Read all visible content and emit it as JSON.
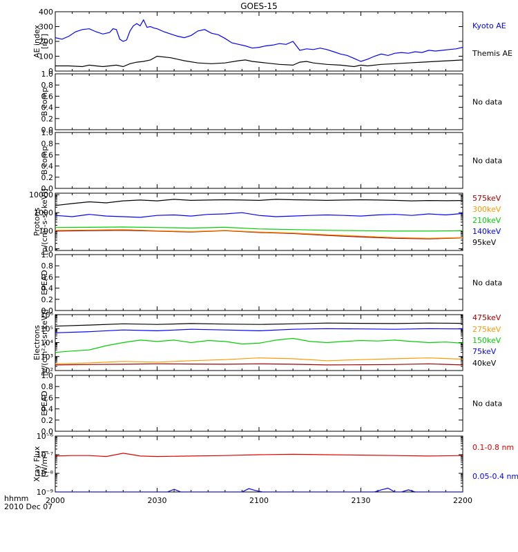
{
  "chart_data": {
    "title": "GOES-15",
    "type": "line",
    "x_label_line1": "hhmm",
    "x_label_line2": "2010 Dec 07",
    "x_ticks": [
      "2000",
      "2030",
      "2100",
      "2130",
      "2200"
    ],
    "x_range_minutes": [
      0,
      120
    ],
    "panels": [
      {
        "id": "ae",
        "ylabel": [
          "AE index",
          "[nT]"
        ],
        "scale": "linear",
        "ylim": [
          0,
          400
        ],
        "ytick_labels": [
          "0",
          "100",
          "200",
          "300",
          "400"
        ],
        "ytick_values": [
          0,
          100,
          200,
          300,
          400
        ],
        "series": [
          {
            "name": "Kyoto AE",
            "color": "#0000ff",
            "x": [
              0,
              2,
              4,
              6,
              8,
              10,
              12,
              14,
              16,
              17,
              18,
              19,
              20,
              21,
              22,
              23,
              24,
              25,
              26,
              27,
              28,
              29,
              30,
              32,
              34,
              36,
              38,
              40,
              42,
              44,
              46,
              48,
              50,
              52,
              54,
              56,
              58,
              60,
              62,
              64,
              66,
              68,
              70,
              72,
              74,
              76,
              78,
              80,
              82,
              84,
              86,
              88,
              90,
              92,
              94,
              96,
              98,
              100,
              102,
              104,
              106,
              108,
              110,
              112,
              114,
              116,
              118,
              120
            ],
            "y": [
              225,
              215,
              235,
              265,
              280,
              285,
              265,
              250,
              260,
              285,
              280,
              215,
              200,
              210,
              270,
              305,
              320,
              305,
              345,
              295,
              300,
              290,
              285,
              265,
              250,
              235,
              225,
              240,
              270,
              280,
              255,
              245,
              220,
              190,
              180,
              170,
              155,
              160,
              170,
              175,
              185,
              180,
              200,
              140,
              150,
              145,
              155,
              145,
              130,
              115,
              105,
              85,
              65,
              80,
              100,
              115,
              105,
              120,
              125,
              120,
              130,
              125,
              140,
              135,
              140,
              145,
              150,
              160
            ]
          },
          {
            "name": "Themis AE",
            "color": "#000000",
            "x": [
              0,
              4,
              8,
              10,
              12,
              14,
              16,
              18,
              20,
              22,
              24,
              26,
              28,
              30,
              34,
              38,
              42,
              46,
              50,
              54,
              56,
              58,
              62,
              66,
              70,
              72,
              74,
              76,
              78,
              80,
              84,
              88,
              90,
              92,
              96,
              100,
              104,
              108,
              112,
              116,
              120
            ],
            "y": [
              35,
              35,
              30,
              40,
              35,
              30,
              35,
              40,
              30,
              50,
              60,
              65,
              75,
              100,
              90,
              70,
              55,
              50,
              55,
              70,
              75,
              65,
              55,
              45,
              40,
              60,
              65,
              55,
              50,
              45,
              40,
              30,
              40,
              35,
              45,
              50,
              55,
              60,
              65,
              70,
              75
            ]
          }
        ]
      },
      {
        "id": "b1",
        "ylabel": [
          "B comp"
        ],
        "scale": "linear",
        "ylim": [
          0,
          1
        ],
        "ytick_labels": [
          "0.0",
          "0.2",
          "0.4",
          "0.6",
          "0.8",
          "1.0"
        ],
        "ytick_values": [
          0,
          0.2,
          0.4,
          0.6,
          0.8,
          1.0
        ],
        "note": "No data",
        "series": []
      },
      {
        "id": "b2",
        "ylabel": [
          "B comp"
        ],
        "scale": "linear",
        "ylim": [
          0,
          1
        ],
        "ytick_labels": [
          "0.0",
          "0.2",
          "0.4",
          "0.6",
          "0.8",
          "1.0"
        ],
        "ytick_values": [
          0,
          0.2,
          0.4,
          0.6,
          0.8,
          1.0
        ],
        "note": "No data",
        "series": []
      },
      {
        "id": "protons",
        "ylabel": [
          "Protons",
          "[p/(cm²-s-sr-keV)]"
        ],
        "scale": "log",
        "ylim": [
          8,
          12000
        ],
        "ytick_labels": [
          "10",
          "100",
          "1000",
          "10000"
        ],
        "ytick_values": [
          10,
          100,
          1000,
          10000
        ],
        "series": [
          {
            "name": "575keV",
            "color": "#a00000",
            "x": [
              0,
              10,
              20,
              30,
              40,
              50,
              60,
              70,
              80,
              90,
              100,
              110,
              120
            ],
            "y": [
              95,
              100,
              105,
              95,
              85,
              100,
              80,
              70,
              55,
              45,
              38,
              35,
              40
            ]
          },
          {
            "name": "300keV",
            "color": "#ff9900",
            "x": [
              0,
              10,
              20,
              30,
              40,
              50,
              60,
              70,
              80,
              90,
              100,
              110,
              120
            ],
            "y": [
              105,
              110,
              115,
              100,
              90,
              105,
              85,
              75,
              60,
              50,
              42,
              38,
              42
            ]
          },
          {
            "name": "210keV",
            "color": "#00d000",
            "x": [
              0,
              10,
              20,
              30,
              40,
              50,
              60,
              70,
              80,
              90,
              100,
              110,
              120
            ],
            "y": [
              150,
              155,
              160,
              150,
              140,
              155,
              125,
              115,
              105,
              100,
              95,
              95,
              100
            ]
          },
          {
            "name": "140keV",
            "color": "#0000ff",
            "x": [
              0,
              5,
              10,
              15,
              20,
              25,
              30,
              35,
              40,
              45,
              50,
              55,
              60,
              65,
              70,
              75,
              80,
              85,
              90,
              95,
              100,
              105,
              110,
              115,
              120
            ],
            "y": [
              700,
              600,
              800,
              650,
              600,
              550,
              700,
              750,
              650,
              800,
              850,
              1000,
              700,
              600,
              650,
              700,
              750,
              700,
              650,
              750,
              800,
              700,
              850,
              750,
              900
            ]
          },
          {
            "name": "95keV",
            "color": "#000000",
            "x": [
              0,
              5,
              10,
              15,
              20,
              25,
              30,
              35,
              40,
              45,
              50,
              55,
              60,
              65,
              70,
              75,
              80,
              85,
              90,
              95,
              100,
              105,
              110,
              115,
              120
            ],
            "y": [
              2500,
              3200,
              4000,
              3500,
              4500,
              5000,
              4500,
              5500,
              4800,
              5000,
              5200,
              5000,
              4800,
              5500,
              5200,
              5000,
              4800,
              5000,
              5200,
              5000,
              4800,
              4500,
              4700,
              4600,
              4700
            ]
          }
        ]
      },
      {
        "id": "epead1",
        "ylabel": [
          "EPEAD"
        ],
        "scale": "linear",
        "ylim": [
          0,
          1
        ],
        "ytick_labels": [
          "0.0",
          "0.2",
          "0.4",
          "0.6",
          "0.8",
          "1.0"
        ],
        "ytick_values": [
          0,
          0.2,
          0.4,
          0.6,
          0.8,
          1.0
        ],
        "note": "No data",
        "series": []
      },
      {
        "id": "electrons",
        "ylabel": [
          "Electrons",
          "[e/(cm²-s-sr-keV)]"
        ],
        "scale": "log",
        "ylim": [
          100,
          1000000
        ],
        "ytick_labels": [
          "10²",
          "10³",
          "10⁴",
          "10⁵",
          "10⁶"
        ],
        "ytick_values": [
          100,
          1000,
          10000,
          100000,
          1000000
        ],
        "series": [
          {
            "name": "475keV",
            "color": "#a00000",
            "x": [
              0,
              10,
              20,
              30,
              40,
              50,
              60,
              70,
              80,
              90,
              100,
              110,
              120
            ],
            "y": [
              250,
              270,
              280,
              300,
              290,
              280,
              300,
              280,
              250,
              260,
              270,
              300,
              250
            ]
          },
          {
            "name": "275keV",
            "color": "#ff9900",
            "x": [
              0,
              10,
              20,
              30,
              40,
              50,
              60,
              70,
              80,
              90,
              100,
              110,
              120
            ],
            "y": [
              300,
              350,
              450,
              400,
              500,
              600,
              800,
              700,
              500,
              600,
              700,
              800,
              650
            ]
          },
          {
            "name": "150keV",
            "color": "#00d000",
            "x": [
              0,
              5,
              10,
              15,
              20,
              25,
              30,
              35,
              40,
              45,
              50,
              55,
              60,
              65,
              70,
              75,
              80,
              85,
              90,
              95,
              100,
              105,
              110,
              115,
              120
            ],
            "y": [
              2000,
              2500,
              3000,
              6000,
              10000,
              15000,
              12000,
              15000,
              10000,
              14000,
              12000,
              8000,
              9000,
              15000,
              20000,
              12000,
              10000,
              12000,
              14000,
              13000,
              15000,
              12000,
              10000,
              11000,
              9000
            ]
          },
          {
            "name": "75keV",
            "color": "#0000ff",
            "x": [
              0,
              10,
              20,
              30,
              40,
              50,
              60,
              70,
              80,
              90,
              100,
              110,
              120
            ],
            "y": [
              50000,
              60000,
              80000,
              70000,
              90000,
              80000,
              70000,
              90000,
              100000,
              95000,
              90000,
              100000,
              95000
            ]
          },
          {
            "name": "40keV",
            "color": "#000000",
            "x": [
              0,
              10,
              20,
              30,
              40,
              50,
              60,
              70,
              80,
              90,
              100,
              110,
              120
            ],
            "y": [
              150000,
              180000,
              220000,
              200000,
              230000,
              210000,
              200000,
              220000,
              250000,
              240000,
              230000,
              250000,
              240000
            ]
          }
        ]
      },
      {
        "id": "epead2",
        "ylabel": [
          "EPEAD"
        ],
        "scale": "linear",
        "ylim": [
          0,
          1
        ],
        "ytick_labels": [
          "0.0",
          "0.2",
          "0.4",
          "0.6",
          "0.8",
          "1.0"
        ],
        "ytick_values": [
          0,
          0.2,
          0.4,
          0.6,
          0.8,
          1.0
        ],
        "note": "No data",
        "series": []
      },
      {
        "id": "xray",
        "ylabel": [
          "Xray Flux",
          "[W/m²]"
        ],
        "scale": "log",
        "ylim": [
          1e-09,
          1e-06
        ],
        "ytick_labels": [
          "10⁻⁹",
          "10⁻⁸",
          "10⁻⁷",
          "10⁻⁶"
        ],
        "ytick_values": [
          1e-09,
          1e-08,
          1e-07,
          1e-06
        ],
        "series": [
          {
            "name": "0.1-0.8 nm",
            "color": "#e00000",
            "x": [
              0,
              5,
              10,
              15,
              20,
              22,
              25,
              30,
              40,
              50,
              60,
              70,
              80,
              90,
              100,
              110,
              120
            ],
            "y": [
              8.5e-08,
              9e-08,
              9e-08,
              8e-08,
              1.2e-07,
              1.05e-07,
              8.5e-08,
              8e-08,
              8.5e-08,
              9e-08,
              1e-07,
              1.05e-07,
              1e-07,
              9.5e-08,
              9e-08,
              8.5e-08,
              9e-08
            ]
          },
          {
            "name": "0.05-0.4 nm",
            "color": "#0000ff",
            "x": [
              0,
              10,
              20,
              30,
              33,
              35,
              37,
              40,
              50,
              55,
              57,
              59,
              61,
              65,
              70,
              80,
              90,
              94,
              96,
              98,
              100,
              102,
              104,
              106,
              110,
              120
            ],
            "y": [
              1e-09,
              1e-09,
              1e-09,
              1e-09,
              1e-09,
              1.4e-09,
              1e-09,
              1e-09,
              1e-09,
              1e-09,
              1.5e-09,
              1.2e-09,
              1e-09,
              1e-09,
              1e-09,
              1e-09,
              1e-09,
              1e-09,
              1.3e-09,
              1.6e-09,
              1e-09,
              1e-09,
              1.3e-09,
              1e-09,
              1e-09,
              1e-09
            ]
          }
        ]
      }
    ]
  }
}
